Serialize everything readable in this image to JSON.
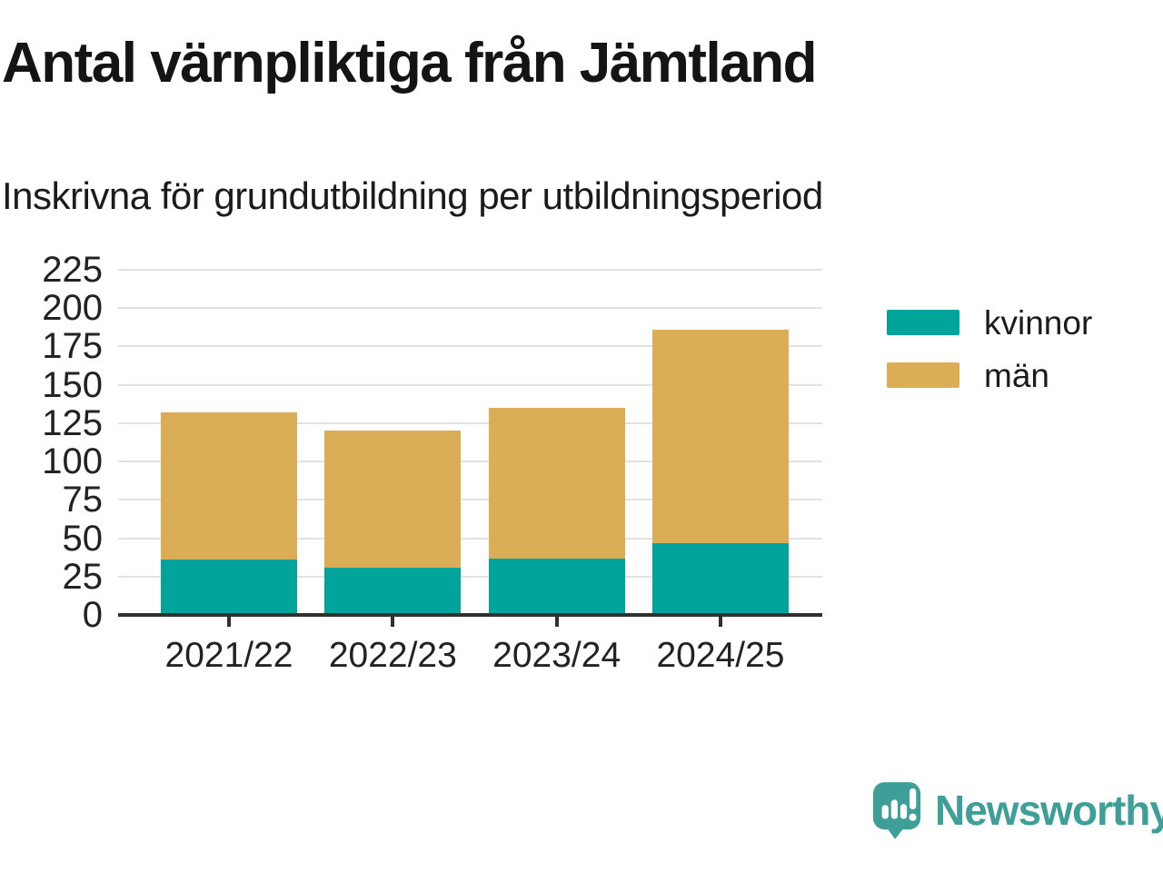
{
  "header": {
    "title": "Antal värnpliktiga från Jämtland",
    "subtitle": "Inskrivna för grundutbildning per utbildningsperiod"
  },
  "chart_data": {
    "type": "bar",
    "stacked": true,
    "categories": [
      "2021/22",
      "2022/23",
      "2023/24",
      "2024/25"
    ],
    "series": [
      {
        "name": "kvinnor",
        "color": "#00a49a",
        "values": [
          36,
          31,
          37,
          47
        ]
      },
      {
        "name": "män",
        "color": "#dbad57",
        "values": [
          96,
          89,
          98,
          139
        ]
      }
    ],
    "stack_totals": [
      132,
      120,
      135,
      186
    ],
    "title": "Antal värnpliktiga från Jämtland",
    "subtitle": "Inskrivna för grundutbildning per utbildningsperiod",
    "xlabel": "",
    "ylabel": "",
    "ylim": [
      0,
      225
    ],
    "yticks": [
      0,
      25,
      50,
      75,
      100,
      125,
      150,
      175,
      200,
      225
    ],
    "grid": true,
    "legend_position": "right"
  },
  "colors": {
    "background": "#ffffff",
    "text": "#1b1b1b",
    "axis": "#303030",
    "gridline": "#e2e2e2"
  },
  "footer": {
    "brand": "Newsworthy",
    "brand_color": "#3d9f97"
  }
}
